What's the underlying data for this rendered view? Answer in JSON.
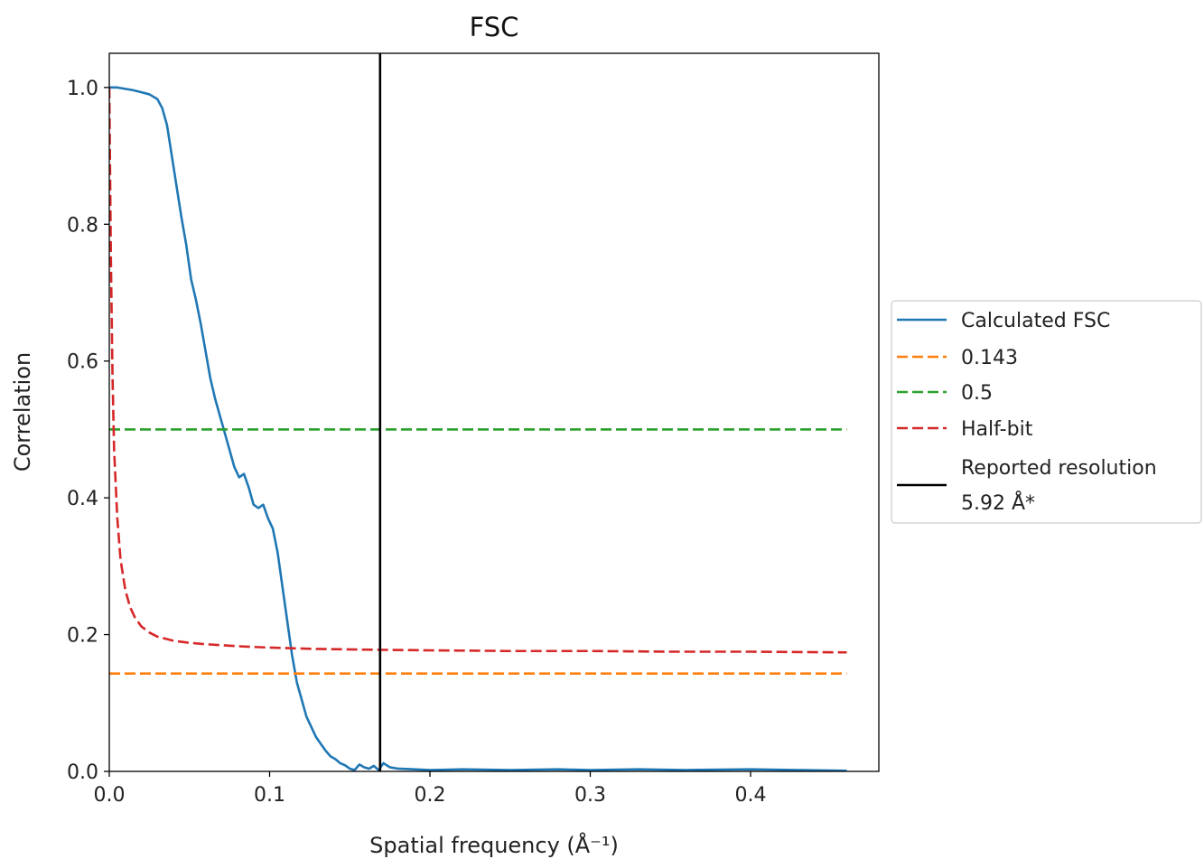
{
  "chart_data": {
    "type": "line",
    "title": "FSC",
    "xlabel": "Spatial frequency (Å⁻¹)",
    "ylabel": "Correlation",
    "xlim": [
      0.0,
      0.48
    ],
    "ylim": [
      0.0,
      1.05
    ],
    "xticks": [
      0.0,
      0.1,
      0.2,
      0.3,
      0.4
    ],
    "xtick_labels": [
      "0.0",
      "0.1",
      "0.2",
      "0.3",
      "0.4"
    ],
    "yticks": [
      0.0,
      0.2,
      0.4,
      0.6,
      0.8,
      1.0
    ],
    "ytick_labels": [
      "0.0",
      "0.2",
      "0.4",
      "0.6",
      "0.8",
      "1.0"
    ],
    "grid": false,
    "legend_placement": "outside-right",
    "series": [
      {
        "name": "Calculated FSC",
        "color": "#1f77b4",
        "style": "solid",
        "x": [
          0.0,
          0.005,
          0.01,
          0.015,
          0.02,
          0.025,
          0.03,
          0.033,
          0.036,
          0.039,
          0.042,
          0.045,
          0.048,
          0.051,
          0.054,
          0.057,
          0.06,
          0.063,
          0.066,
          0.069,
          0.072,
          0.075,
          0.078,
          0.081,
          0.084,
          0.087,
          0.09,
          0.093,
          0.096,
          0.099,
          0.102,
          0.105,
          0.108,
          0.111,
          0.114,
          0.117,
          0.12,
          0.123,
          0.126,
          0.129,
          0.132,
          0.135,
          0.138,
          0.141,
          0.144,
          0.147,
          0.15,
          0.153,
          0.156,
          0.159,
          0.162,
          0.165,
          0.168,
          0.171,
          0.175,
          0.18,
          0.19,
          0.2,
          0.22,
          0.25,
          0.28,
          0.3,
          0.33,
          0.36,
          0.4,
          0.43,
          0.46
        ],
        "y": [
          1.0,
          1.0,
          0.998,
          0.996,
          0.993,
          0.99,
          0.983,
          0.97,
          0.945,
          0.9,
          0.855,
          0.81,
          0.77,
          0.72,
          0.69,
          0.655,
          0.615,
          0.575,
          0.545,
          0.52,
          0.495,
          0.47,
          0.445,
          0.43,
          0.435,
          0.415,
          0.39,
          0.385,
          0.39,
          0.37,
          0.355,
          0.32,
          0.27,
          0.22,
          0.17,
          0.13,
          0.105,
          0.08,
          0.065,
          0.05,
          0.04,
          0.03,
          0.022,
          0.018,
          0.012,
          0.009,
          0.004,
          0.002,
          0.01,
          0.006,
          0.004,
          0.008,
          0.002,
          0.012,
          0.006,
          0.004,
          0.003,
          0.002,
          0.003,
          0.002,
          0.003,
          0.002,
          0.003,
          0.002,
          0.003,
          0.002,
          0.001
        ]
      },
      {
        "name": "0.143",
        "color": "#ff7f0e",
        "style": "dashed",
        "x": [
          0.0,
          0.46
        ],
        "y": [
          0.143,
          0.143
        ]
      },
      {
        "name": "0.5",
        "color": "#2ca02c",
        "style": "dashed",
        "x": [
          0.0,
          0.46
        ],
        "y": [
          0.5,
          0.5
        ]
      },
      {
        "name": "Half-bit",
        "color": "#d62728",
        "style": "dashed",
        "x": [
          0.0,
          0.001,
          0.002,
          0.003,
          0.005,
          0.007,
          0.01,
          0.013,
          0.016,
          0.02,
          0.025,
          0.03,
          0.04,
          0.05,
          0.06,
          0.08,
          0.1,
          0.13,
          0.16,
          0.2,
          0.25,
          0.3,
          0.35,
          0.4,
          0.46
        ],
        "y": [
          1.0,
          0.75,
          0.58,
          0.47,
          0.37,
          0.31,
          0.265,
          0.24,
          0.225,
          0.212,
          0.203,
          0.197,
          0.191,
          0.188,
          0.186,
          0.183,
          0.181,
          0.179,
          0.178,
          0.177,
          0.176,
          0.176,
          0.175,
          0.175,
          0.174
        ]
      },
      {
        "name": "Reported resolution\n 5.92 Å*",
        "color": "#000000",
        "style": "solid",
        "x": [
          0.1689,
          0.1689
        ],
        "y": [
          0.0,
          1.05
        ]
      }
    ],
    "legend": [
      {
        "label": "Calculated FSC",
        "color": "#1f77b4",
        "style": "solid"
      },
      {
        "label": "0.143",
        "color": "#ff7f0e",
        "style": "dashed"
      },
      {
        "label": "0.5",
        "color": "#2ca02c",
        "style": "dashed"
      },
      {
        "label": "Half-bit",
        "color": "#d62728",
        "style": "dashed"
      },
      {
        "label": "Reported resolution",
        "label_line2": " 5.92 Å*",
        "color": "#000000",
        "style": "solid"
      }
    ]
  }
}
